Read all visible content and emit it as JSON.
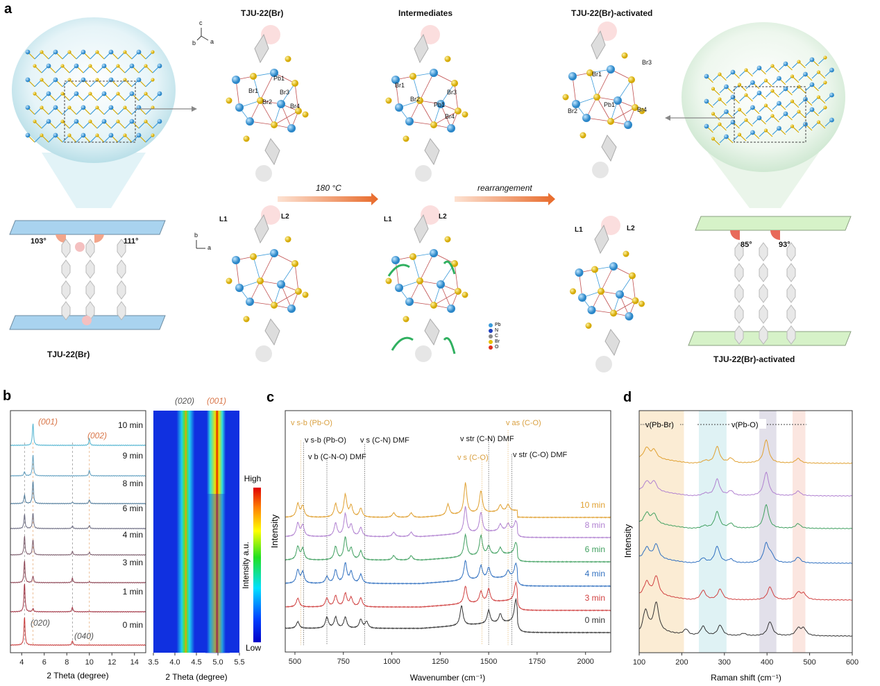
{
  "panel_labels": {
    "a": "a",
    "b": "b",
    "c": "c",
    "d": "d"
  },
  "panel_a": {
    "titles": {
      "tju": "TJU-22(Br)",
      "intermediates": "Intermediates",
      "activated": "TJU-22(Br)-activated"
    },
    "arrows": {
      "heat": "180 °C",
      "rearrangement": "rearrangement"
    },
    "bottom_labels": {
      "left": "TJU-22(Br)",
      "right": "TJU-22(Br)-activated"
    },
    "angles": {
      "left1": "103°",
      "left2": "111°",
      "right1": "85°",
      "right2": "93°"
    },
    "ligands": [
      "L1",
      "L2"
    ],
    "atom_labels": [
      "Br1",
      "Br2",
      "Br3",
      "Br4",
      "Pb1"
    ],
    "axes_top": [
      "c",
      "b",
      "a"
    ],
    "axes_bottom": [
      "b",
      "a"
    ],
    "legend": [
      {
        "label": "Pb",
        "color": "#3a9ad9"
      },
      {
        "label": "N",
        "color": "#2040c0"
      },
      {
        "label": "C",
        "color": "#888888"
      },
      {
        "label": "Br",
        "color": "#e8c000"
      },
      {
        "label": "O",
        "color": "#e03020"
      }
    ]
  },
  "chart_data": [
    {
      "type": "line",
      "id": "b",
      "xlabel": "2 Theta (degree)",
      "ylabel": "",
      "xlim": [
        3,
        15
      ],
      "xticks": [
        4,
        6,
        8,
        10,
        12,
        14
      ],
      "reflections": [
        {
          "label": "(001)",
          "pos": 5.0,
          "color": "#d9774a"
        },
        {
          "label": "(002)",
          "pos": 10.0,
          "color": "#d9774a"
        },
        {
          "label": "(020)",
          "pos": 4.25,
          "color": "#555555"
        },
        {
          "label": "(040)",
          "pos": 8.5,
          "color": "#555555"
        }
      ],
      "series": [
        {
          "name": "10 min",
          "color": "#4fb3d0",
          "peaks": [
            [
              4.25,
              0.0
            ],
            [
              5.0,
              1.0
            ],
            [
              8.5,
              0.0
            ],
            [
              10.0,
              0.3
            ]
          ]
        },
        {
          "name": "9 min",
          "color": "#5f9fc0",
          "peaks": [
            [
              4.25,
              0.2
            ],
            [
              5.0,
              0.95
            ],
            [
              8.5,
              0.0
            ],
            [
              10.0,
              0.25
            ]
          ]
        },
        {
          "name": "8 min",
          "color": "#4f7a9a",
          "peaks": [
            [
              4.25,
              0.4
            ],
            [
              5.0,
              1.0
            ],
            [
              8.5,
              0.06
            ],
            [
              10.0,
              0.18
            ]
          ]
        },
        {
          "name": "6 min",
          "color": "#6a6a80",
          "peaks": [
            [
              4.25,
              0.65
            ],
            [
              5.0,
              0.7
            ],
            [
              8.5,
              0.12
            ],
            [
              10.0,
              0.15
            ]
          ]
        },
        {
          "name": "4 min",
          "color": "#7a5a6a",
          "peaks": [
            [
              4.25,
              0.85
            ],
            [
              5.0,
              0.7
            ],
            [
              8.5,
              0.15
            ],
            [
              10.0,
              0.12
            ]
          ]
        },
        {
          "name": "3 min",
          "color": "#8a4050",
          "peaks": [
            [
              4.25,
              1.0
            ],
            [
              5.0,
              0.3
            ],
            [
              8.5,
              0.2
            ],
            [
              10.0,
              0.04
            ]
          ]
        },
        {
          "name": "1 min",
          "color": "#a03040",
          "peaks": [
            [
              4.25,
              1.3
            ],
            [
              5.0,
              0.15
            ],
            [
              8.5,
              0.2
            ],
            [
              10.0,
              0.02
            ]
          ]
        },
        {
          "name": "0 min",
          "color": "#c83a3a",
          "peaks": [
            [
              4.25,
              1.3
            ],
            [
              5.0,
              0.0
            ],
            [
              8.5,
              0.2
            ],
            [
              10.0,
              0.0
            ]
          ]
        }
      ]
    },
    {
      "type": "heatmap",
      "id": "b2",
      "xlabel": "2 Theta (degree)",
      "xlim": [
        3.5,
        5.5
      ],
      "xticks": [
        3.5,
        4.0,
        4.5,
        5.0,
        5.5
      ],
      "column_labels": [
        "(020)",
        "(001)"
      ],
      "colorbar": {
        "title": "Intensity a.u.",
        "high": "High",
        "low": "Low"
      }
    },
    {
      "type": "line",
      "id": "c",
      "xlabel": "Wavenumber (cm⁻¹)",
      "ylabel": "Intensity",
      "xlim": [
        450,
        2130
      ],
      "xticks": [
        500,
        750,
        1000,
        1250,
        1500,
        1750,
        2000
      ],
      "annotations": [
        {
          "label": "v s-b (Pb-O)",
          "pos": 530,
          "color": "#d9a040"
        },
        {
          "label": "v s-b (Pb-O)",
          "pos": 545,
          "color": "#111111"
        },
        {
          "label": "v b (C-N-O) DMF",
          "pos": 665,
          "color": "#111111"
        },
        {
          "label": "v s (C-N) DMF",
          "pos": 860,
          "color": "#111111"
        },
        {
          "label": "v str (C-N) DMF",
          "pos": 1500,
          "color": "#111111"
        },
        {
          "label": "v s (C-O)",
          "pos": 1465,
          "color": "#d9a040"
        },
        {
          "label": "v as (C-O)",
          "pos": 1600,
          "color": "#d9a040"
        },
        {
          "label": "v str (C-O) DMF",
          "pos": 1620,
          "color": "#111111"
        }
      ],
      "series": [
        {
          "name": "10 min",
          "color": "#e0a030",
          "peaks": [
            [
              515,
              0.6
            ],
            [
              540,
              0.5
            ],
            [
              710,
              0.6
            ],
            [
              760,
              1.0
            ],
            [
              790,
              0.5
            ],
            [
              840,
              0.4
            ],
            [
              1010,
              0.2
            ],
            [
              1100,
              0.2
            ],
            [
              1290,
              0.5
            ],
            [
              1380,
              1.4
            ],
            [
              1460,
              1.0
            ],
            [
              1560,
              0.3
            ],
            [
              1600,
              0.3
            ]
          ]
        },
        {
          "name": "8 min",
          "color": "#b080d0",
          "peaks": [
            [
              515,
              0.6
            ],
            [
              540,
              0.5
            ],
            [
              710,
              0.6
            ],
            [
              760,
              1.0
            ],
            [
              790,
              0.5
            ],
            [
              840,
              0.4
            ],
            [
              1010,
              0.2
            ],
            [
              1100,
              0.2
            ],
            [
              1380,
              1.2
            ],
            [
              1460,
              0.9
            ],
            [
              1560,
              0.3
            ],
            [
              1600,
              0.3
            ],
            [
              1640,
              0.4
            ]
          ]
        },
        {
          "name": "6 min",
          "color": "#40a060",
          "peaks": [
            [
              515,
              0.6
            ],
            [
              540,
              0.5
            ],
            [
              710,
              0.6
            ],
            [
              760,
              1.0
            ],
            [
              790,
              0.5
            ],
            [
              840,
              0.4
            ],
            [
              1010,
              0.2
            ],
            [
              1100,
              0.2
            ],
            [
              1380,
              1.0
            ],
            [
              1460,
              0.9
            ],
            [
              1500,
              0.4
            ],
            [
              1560,
              0.3
            ],
            [
              1640,
              0.5
            ]
          ]
        },
        {
          "name": "4 min",
          "color": "#3070c0",
          "peaks": [
            [
              515,
              0.6
            ],
            [
              540,
              0.5
            ],
            [
              665,
              0.3
            ],
            [
              710,
              0.6
            ],
            [
              760,
              0.9
            ],
            [
              790,
              0.5
            ],
            [
              840,
              0.4
            ],
            [
              1380,
              0.9
            ],
            [
              1460,
              0.6
            ],
            [
              1500,
              0.5
            ],
            [
              1600,
              0.3
            ],
            [
              1640,
              0.6
            ]
          ]
        },
        {
          "name": "3 min",
          "color": "#d04040",
          "peaks": [
            [
              515,
              0.4
            ],
            [
              665,
              0.4
            ],
            [
              710,
              0.5
            ],
            [
              760,
              0.6
            ],
            [
              790,
              0.4
            ],
            [
              840,
              0.4
            ],
            [
              1380,
              0.8
            ],
            [
              1460,
              0.5
            ],
            [
              1500,
              0.6
            ],
            [
              1640,
              0.8
            ]
          ]
        },
        {
          "name": "0 min",
          "color": "#333333",
          "peaks": [
            [
              515,
              0.3
            ],
            [
              665,
              0.5
            ],
            [
              710,
              0.5
            ],
            [
              760,
              0.5
            ],
            [
              840,
              0.4
            ],
            [
              870,
              0.3
            ],
            [
              1360,
              0.9
            ],
            [
              1500,
              0.6
            ],
            [
              1560,
              0.4
            ],
            [
              1640,
              1.0
            ]
          ]
        }
      ]
    },
    {
      "type": "line",
      "id": "d",
      "xlabel": "Raman shift (cm⁻¹)",
      "ylabel": "Intensity",
      "xlim": [
        100,
        600
      ],
      "xticks": [
        100,
        200,
        300,
        400,
        500,
        600
      ],
      "band_labels": [
        "v(Pb-Br)",
        "v(Pb-O)"
      ],
      "bands": [
        {
          "range": [
            100,
            205
          ],
          "color": "#fbecd4"
        },
        {
          "range": [
            240,
            305
          ],
          "color": "#dff2f4"
        },
        {
          "range": [
            382,
            422
          ],
          "color": "#e2e0ea"
        },
        {
          "range": [
            460,
            490
          ],
          "color": "#fbe6e0"
        }
      ],
      "series": [
        {
          "name": "10 min",
          "color": "#e0a030",
          "peaks": [
            [
              118,
              0.4
            ],
            [
              135,
              0.35
            ],
            [
              255,
              0.1
            ],
            [
              283,
              0.7
            ],
            [
              315,
              0.2
            ],
            [
              398,
              1.0
            ],
            [
              473,
              0.2
            ]
          ]
        },
        {
          "name": "8 min",
          "color": "#b080d0",
          "peaks": [
            [
              118,
              0.35
            ],
            [
              135,
              0.4
            ],
            [
              255,
              0.1
            ],
            [
              283,
              0.7
            ],
            [
              315,
              0.2
            ],
            [
              398,
              1.0
            ],
            [
              473,
              0.2
            ]
          ]
        },
        {
          "name": "6 min",
          "color": "#40a060",
          "peaks": [
            [
              118,
              0.4
            ],
            [
              135,
              0.4
            ],
            [
              253,
              0.1
            ],
            [
              283,
              0.7
            ],
            [
              315,
              0.2
            ],
            [
              398,
              1.0
            ],
            [
              473,
              0.2
            ]
          ]
        },
        {
          "name": "4 min",
          "color": "#3070c0",
          "peaks": [
            [
              118,
              0.4
            ],
            [
              140,
              0.6
            ],
            [
              250,
              0.2
            ],
            [
              283,
              0.7
            ],
            [
              315,
              0.15
            ],
            [
              398,
              0.8
            ],
            [
              410,
              0.3
            ],
            [
              473,
              0.25
            ]
          ]
        },
        {
          "name": "3 min",
          "color": "#d04040",
          "peaks": [
            [
              118,
              0.5
            ],
            [
              140,
              0.8
            ],
            [
              250,
              0.4
            ],
            [
              290,
              0.45
            ],
            [
              407,
              0.55
            ],
            [
              473,
              0.3
            ],
            [
              486,
              0.25
            ]
          ]
        },
        {
          "name": "0 min",
          "color": "#333333",
          "peaks": [
            [
              115,
              0.8
            ],
            [
              140,
              1.2
            ],
            [
              210,
              0.25
            ],
            [
              250,
              0.4
            ],
            [
              290,
              0.45
            ],
            [
              345,
              0.1
            ],
            [
              407,
              0.6
            ],
            [
              473,
              0.3
            ],
            [
              486,
              0.3
            ]
          ]
        }
      ]
    }
  ]
}
